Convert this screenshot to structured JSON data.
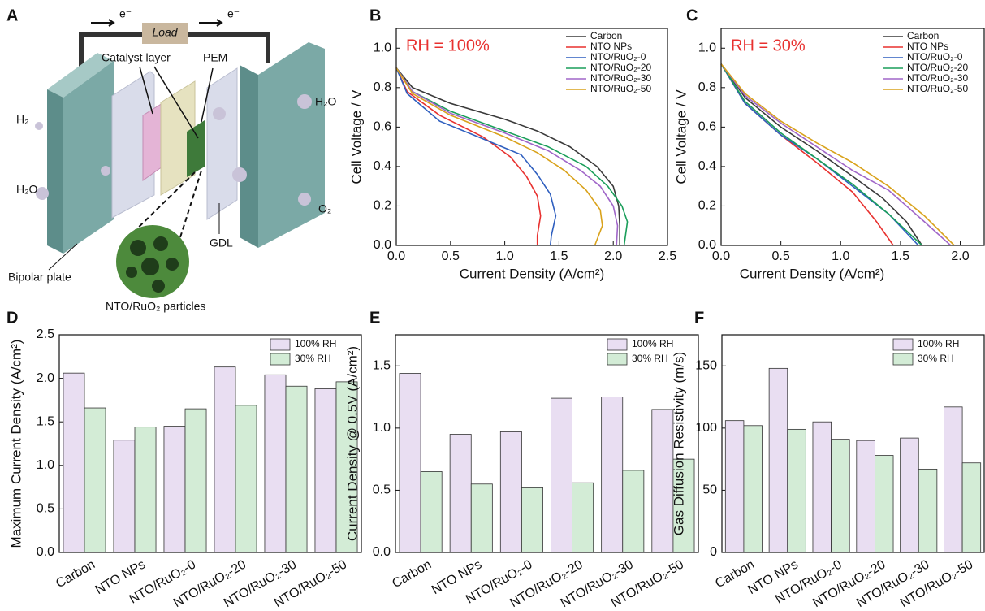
{
  "diagram": {
    "panel": "A",
    "labels": {
      "load": "Load",
      "electron_left": "e⁻",
      "electron_right": "e⁻",
      "catalyst_layer": "Catalyst layer",
      "pem": "PEM",
      "h2": "H₂",
      "h2o_in": "H₂O",
      "h2o_out": "H₂O",
      "o2": "O₂",
      "gdl": "GDL",
      "bipolar_plate": "Bipolar plate",
      "particles": "NTO/RuO₂ particles"
    }
  },
  "chart_data": [
    {
      "panel": "B",
      "type": "line",
      "annotation": "RH = 100%",
      "x_label": "Current Density (A/cm²)",
      "y_label": "Cell Voltage / V",
      "legend": "upper right",
      "xlim": [
        0,
        2.5
      ],
      "xticks": [
        {
          "value": 0,
          "label": "0.0"
        },
        0.5,
        {
          "value": 1,
          "label": "1.0"
        },
        1.5,
        {
          "value": 2,
          "label": "2.0"
        },
        2.5
      ],
      "ylim": [
        0,
        1.1
      ],
      "yticks": [
        {
          "value": 0,
          "label": "0.0"
        },
        0.2,
        0.4,
        0.6,
        0.8,
        {
          "value": 1,
          "label": "1.0"
        }
      ],
      "series": [
        {
          "name": "Carbon",
          "color": "#3a3a3a",
          "x": [
            0,
            0.15,
            0.5,
            1.0,
            1.3,
            1.6,
            1.85,
            2.0,
            2.05,
            2.06,
            2.06
          ],
          "values": [
            0.9,
            0.8,
            0.72,
            0.64,
            0.58,
            0.5,
            0.4,
            0.3,
            0.2,
            0.1,
            0
          ]
        },
        {
          "name": "NTO NPs",
          "color": "#e8312f",
          "x": [
            0,
            0.1,
            0.4,
            0.8,
            1.05,
            1.2,
            1.3,
            1.33,
            1.3,
            1.3
          ],
          "values": [
            0.9,
            0.78,
            0.66,
            0.55,
            0.45,
            0.35,
            0.25,
            0.15,
            0.05,
            0
          ]
        },
        {
          "name": "NTO/RuO₂-0",
          "color": "#2f5fbf",
          "x": [
            0,
            0.1,
            0.4,
            0.8,
            1.15,
            1.3,
            1.42,
            1.47,
            1.43,
            1.42
          ],
          "values": [
            0.9,
            0.77,
            0.63,
            0.54,
            0.46,
            0.36,
            0.26,
            0.15,
            0.05,
            0
          ]
        },
        {
          "name": "NTO/RuO₂-20",
          "color": "#1a9e5a",
          "x": [
            0,
            0.15,
            0.5,
            1.0,
            1.4,
            1.75,
            1.95,
            2.08,
            2.13,
            2.1
          ],
          "values": [
            0.9,
            0.78,
            0.68,
            0.58,
            0.5,
            0.4,
            0.3,
            0.2,
            0.12,
            0
          ]
        },
        {
          "name": "NTO/RuO₂-30",
          "color": "#a066c8",
          "x": [
            0,
            0.15,
            0.5,
            1.0,
            1.4,
            1.7,
            1.88,
            2.0,
            2.04,
            2.03
          ],
          "values": [
            0.9,
            0.78,
            0.67,
            0.57,
            0.48,
            0.38,
            0.3,
            0.2,
            0.1,
            0
          ]
        },
        {
          "name": "NTO/RuO₂-50",
          "color": "#d9a21b",
          "x": [
            0,
            0.15,
            0.5,
            1.0,
            1.3,
            1.55,
            1.75,
            1.88,
            1.9,
            1.83
          ],
          "values": [
            0.9,
            0.77,
            0.66,
            0.55,
            0.47,
            0.38,
            0.28,
            0.18,
            0.1,
            0
          ]
        }
      ]
    },
    {
      "panel": "C",
      "type": "line",
      "annotation": "RH = 30%",
      "x_label": "Current Density (A/cm²)",
      "y_label": "Cell Voltage / V",
      "legend": "upper right",
      "xlim": [
        0,
        2.2
      ],
      "xticks": [
        {
          "value": 0,
          "label": "0.0"
        },
        0.5,
        {
          "value": 1,
          "label": "1.0"
        },
        1.5,
        {
          "value": 2,
          "label": "2.0"
        }
      ],
      "ylim": [
        0,
        1.1
      ],
      "yticks": [
        {
          "value": 0,
          "label": "0.0"
        },
        0.2,
        0.4,
        0.6,
        0.8,
        {
          "value": 1,
          "label": "1.0"
        }
      ],
      "series": [
        {
          "name": "Carbon",
          "color": "#3a3a3a",
          "x": [
            0,
            0.2,
            0.5,
            0.8,
            1.1,
            1.35,
            1.55,
            1.68
          ],
          "values": [
            0.92,
            0.75,
            0.6,
            0.48,
            0.35,
            0.24,
            0.12,
            0
          ]
        },
        {
          "name": "NTO NPs",
          "color": "#e8312f",
          "x": [
            0,
            0.2,
            0.5,
            0.8,
            1.1,
            1.3,
            1.44
          ],
          "values": [
            0.92,
            0.72,
            0.56,
            0.42,
            0.27,
            0.12,
            0
          ]
        },
        {
          "name": "NTO/RuO₂-0",
          "color": "#2f5fbf",
          "x": [
            0,
            0.2,
            0.5,
            0.8,
            1.1,
            1.4,
            1.65
          ],
          "values": [
            0.92,
            0.72,
            0.56,
            0.44,
            0.3,
            0.16,
            0
          ]
        },
        {
          "name": "NTO/RuO₂-20",
          "color": "#1a9e5a",
          "x": [
            0,
            0.2,
            0.5,
            0.8,
            1.1,
            1.4,
            1.68
          ],
          "values": [
            0.92,
            0.73,
            0.57,
            0.44,
            0.31,
            0.16,
            0
          ]
        },
        {
          "name": "NTO/RuO₂-30",
          "color": "#a066c8",
          "x": [
            0,
            0.2,
            0.5,
            0.8,
            1.1,
            1.4,
            1.7,
            1.92
          ],
          "values": [
            0.92,
            0.76,
            0.62,
            0.5,
            0.38,
            0.28,
            0.12,
            0
          ]
        },
        {
          "name": "NTO/RuO₂-50",
          "color": "#d9a21b",
          "x": [
            0,
            0.2,
            0.5,
            0.8,
            1.1,
            1.4,
            1.7,
            1.95
          ],
          "values": [
            0.92,
            0.77,
            0.63,
            0.52,
            0.42,
            0.3,
            0.15,
            0
          ]
        }
      ]
    },
    {
      "panel": "D",
      "type": "bar",
      "y_label": "Maximum Current Density (A/cm²)",
      "legend": "upper right",
      "categories": [
        "Carbon",
        "NTO NPs",
        "NTO/RuO₂-0",
        "NTO/RuO₂-20",
        "NTO/RuO₂-30",
        "NTO/RuO₂-50"
      ],
      "ylim": [
        0,
        2.5
      ],
      "yticks": [
        {
          "value": 0,
          "label": "0.0"
        },
        0.5,
        {
          "value": 1,
          "label": "1.0"
        },
        1.5,
        {
          "value": 2,
          "label": "2.0"
        },
        2.5
      ],
      "series": [
        {
          "name": "100% RH",
          "color": "#e9def2",
          "values": [
            2.06,
            1.29,
            1.45,
            2.13,
            2.04,
            1.88
          ]
        },
        {
          "name": "30% RH",
          "color": "#d3ecd6",
          "values": [
            1.66,
            1.44,
            1.65,
            1.69,
            1.91,
            1.96
          ]
        }
      ]
    },
    {
      "panel": "E",
      "type": "bar",
      "y_label": "Current Density @ 0.5V (A/cm²)",
      "legend": "upper right",
      "categories": [
        "Carbon",
        "NTO NPs",
        "NTO/RuO₂-0",
        "NTO/RuO₂-20",
        "NTO/RuO₂-30",
        "NTO/RuO₂-50"
      ],
      "ylim": [
        0,
        1.75
      ],
      "yticks": [
        {
          "value": 0,
          "label": "0.0"
        },
        0.5,
        {
          "value": 1,
          "label": "1.0"
        },
        1.5
      ],
      "series": [
        {
          "name": "100% RH",
          "color": "#e9def2",
          "values": [
            1.44,
            0.95,
            0.97,
            1.24,
            1.25,
            1.15
          ]
        },
        {
          "name": "30% RH",
          "color": "#d3ecd6",
          "values": [
            0.65,
            0.55,
            0.52,
            0.56,
            0.66,
            0.75
          ]
        }
      ]
    },
    {
      "panel": "F",
      "type": "bar",
      "y_label": "Gas Diffusion Resistivity (m/s)",
      "legend": "upper right",
      "categories": [
        "Carbon",
        "NTO NPs",
        "NTO/RuO₂-0",
        "NTO/RuO₂-20",
        "NTO/RuO₂-30",
        "NTO/RuO₂-50"
      ],
      "ylim": [
        0,
        175
      ],
      "yticks": [
        0,
        50,
        100,
        150
      ],
      "series": [
        {
          "name": "100% RH",
          "color": "#e9def2",
          "values": [
            106,
            148,
            105,
            90,
            92,
            117
          ]
        },
        {
          "name": "30% RH",
          "color": "#d3ecd6",
          "values": [
            102,
            99,
            91,
            78,
            67,
            72
          ]
        }
      ]
    }
  ]
}
